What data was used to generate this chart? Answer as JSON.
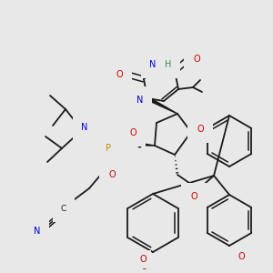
{
  "bg_color": "#e8e8e8",
  "bond_color": "#1a1a1a",
  "atom_colors": {
    "O": "#cc0000",
    "N": "#0000cc",
    "P": "#cc8800",
    "C": "#1a1a1a",
    "H": "#2e8b57"
  },
  "figsize": [
    3.0,
    3.0
  ],
  "dpi": 100
}
